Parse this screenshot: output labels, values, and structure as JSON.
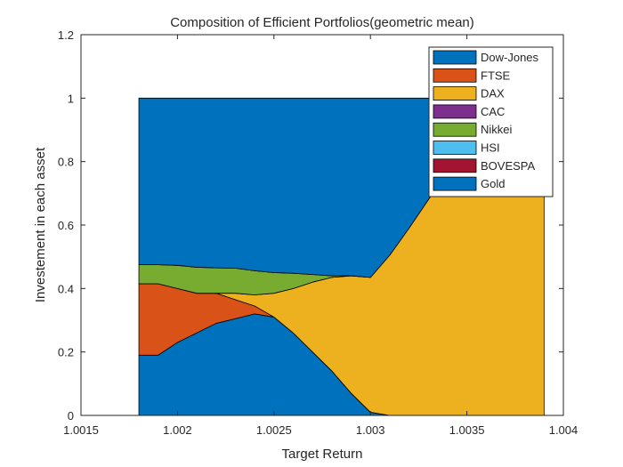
{
  "chart_data": {
    "type": "area",
    "title": "Composition of Efficient Portfolios(geometric mean)",
    "xlabel": "Target Return",
    "ylabel": "Investement in each asset",
    "xlim": [
      1.0015,
      1.004
    ],
    "ylim": [
      0,
      1.2
    ],
    "xticks": [
      1.0015,
      1.002,
      1.0025,
      1.003,
      1.0035,
      1.004
    ],
    "xtick_labels": [
      "1.0015",
      "1.002",
      "1.0025",
      "1.003",
      "1.0035",
      "1.004"
    ],
    "yticks": [
      0,
      0.2,
      0.4,
      0.6,
      0.8,
      1,
      1.2
    ],
    "ytick_labels": [
      "0",
      "0.2",
      "0.4",
      "0.6",
      "0.8",
      "1",
      "1.2"
    ],
    "stacked": true,
    "grid": false,
    "legend_position": "top-right",
    "x": [
      1.0018,
      1.0019,
      1.002,
      1.0021,
      1.0022,
      1.0023,
      1.0024,
      1.0025,
      1.0026,
      1.0027,
      1.0028,
      1.0029,
      1.003,
      1.0031,
      1.0032,
      1.0033,
      1.0034,
      1.0035,
      1.0036,
      1.0037,
      1.0038,
      1.0039
    ],
    "series": [
      {
        "name": "Dow-Jones",
        "color": "#0072BD",
        "values": [
          0.19,
          0.19,
          0.23,
          0.26,
          0.29,
          0.305,
          0.32,
          0.31,
          0.26,
          0.2,
          0.14,
          0.07,
          0.01,
          0,
          0,
          0,
          0,
          0,
          0,
          0,
          0,
          0
        ]
      },
      {
        "name": "FTSE",
        "color": "#D95319",
        "values": [
          0.225,
          0.225,
          0.17,
          0.125,
          0.095,
          0.06,
          0.025,
          0,
          0,
          0,
          0,
          0,
          0,
          0,
          0,
          0,
          0,
          0,
          0,
          0,
          0,
          0
        ]
      },
      {
        "name": "DAX",
        "color": "#EDB120",
        "values": [
          0,
          0,
          0,
          0,
          0,
          0.02,
          0.035,
          0.075,
          0.14,
          0.22,
          0.295,
          0.37,
          0.425,
          0.505,
          0.59,
          0.68,
          0.77,
          0.86,
          0.94,
          1.0,
          1.0,
          1.0
        ]
      },
      {
        "name": "CAC",
        "color": "#7E2F8E",
        "values": [
          0,
          0,
          0,
          0,
          0,
          0,
          0,
          0,
          0,
          0,
          0,
          0,
          0,
          0,
          0,
          0,
          0,
          0,
          0,
          0,
          0,
          0
        ]
      },
      {
        "name": "Nikkei",
        "color": "#77AC30",
        "values": [
          0.06,
          0.06,
          0.073,
          0.082,
          0.08,
          0.079,
          0.076,
          0.065,
          0.048,
          0.024,
          0.005,
          0.0,
          0,
          0,
          0,
          0,
          0,
          0,
          0,
          0,
          0,
          0
        ]
      },
      {
        "name": "HSI",
        "color": "#4DBEEE",
        "values": [
          0,
          0,
          0,
          0,
          0,
          0,
          0,
          0,
          0,
          0,
          0,
          0,
          0,
          0,
          0,
          0,
          0,
          0,
          0,
          0,
          0,
          0
        ]
      },
      {
        "name": "BOVESPA",
        "color": "#A2142F",
        "values": [
          0,
          0,
          0,
          0,
          0,
          0,
          0,
          0,
          0,
          0,
          0,
          0,
          0,
          0,
          0,
          0,
          0,
          0,
          0,
          0,
          0,
          0
        ]
      },
      {
        "name": "Gold",
        "color": "#0072BD",
        "values": [
          0.525,
          0.525,
          0.527,
          0.533,
          0.535,
          0.536,
          0.544,
          0.55,
          0.552,
          0.556,
          0.56,
          0.56,
          0.565,
          0.495,
          0.41,
          0.32,
          0.23,
          0.14,
          0.06,
          0,
          0,
          0
        ]
      }
    ]
  }
}
